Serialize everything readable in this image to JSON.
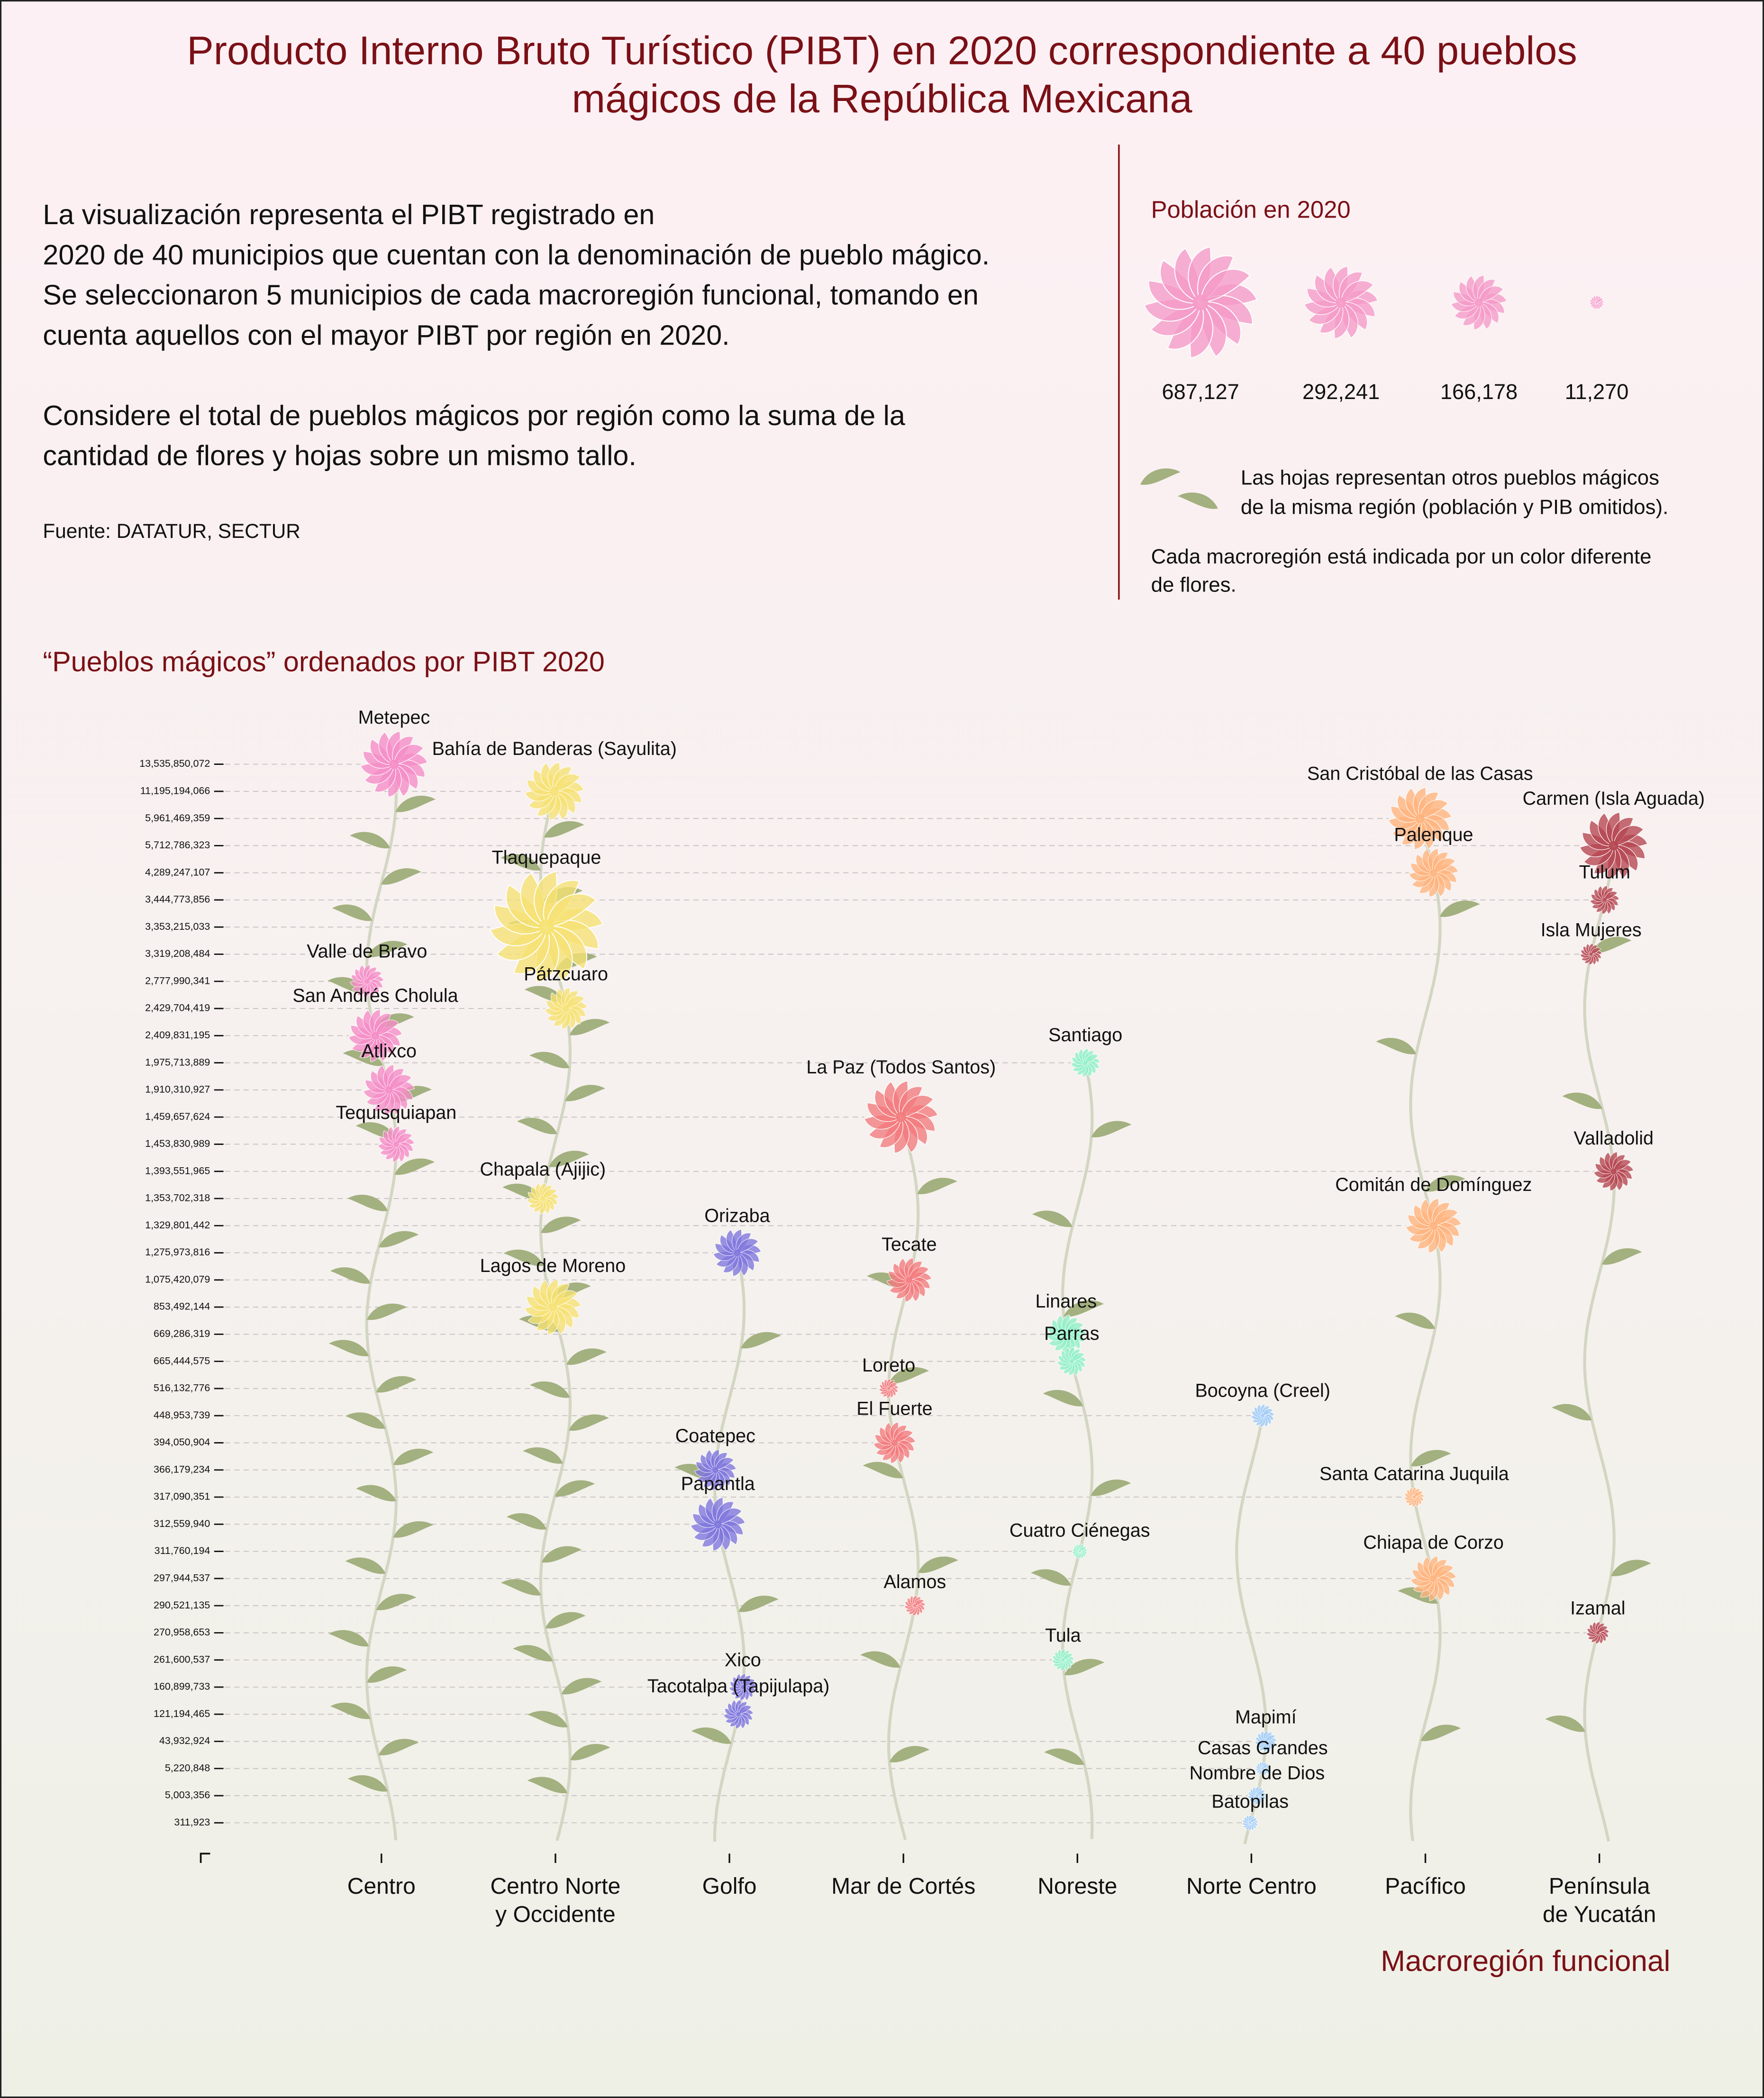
{
  "chart_data": {
    "type": "flower",
    "title": [
      "Producto Interno Bruto Turístico (PIBT) en 2020 correspondiente a 40 pueblos",
      "mágicos de la República Mexicana"
    ],
    "description": [
      [
        "La visualización representa el PIBT registrado en",
        "2020 de 40 municipios que cuentan con la denominación de pueblo mágico.",
        "Se seleccionaron 5 municipios de cada macroregión funcional, tomando en",
        "cuenta aquellos con el mayor PIBT por región en 2020."
      ],
      [
        "Considere el total de pueblos mágicos por región como la suma de la",
        "cantidad de flores y hojas sobre un mismo tallo."
      ]
    ],
    "source": "Fuente: DATATUR, SECTUR",
    "subtitle": "“Pueblos mágicos” ordenados por PIBT 2020",
    "xlabel": "Macroregión funcional",
    "legend": {
      "title": "Población en 2020",
      "color": "#f59ac8",
      "sizes": [
        {
          "value": 687127,
          "label": "687,127"
        },
        {
          "value": 292241,
          "label": "292,241"
        },
        {
          "value": 166178,
          "label": "166,178"
        },
        {
          "value": 11270,
          "label": "11,270"
        }
      ],
      "leaf_note": [
        "Las hojas representan otros pueblos mágicos",
        "de la misma región (población y PIB omitidos)."
      ],
      "color_note": [
        "Cada macroregión está indicada por un color diferente",
        "de flores."
      ]
    },
    "leaf_color": "#a3b07f",
    "y_scale": "rank",
    "grid": true,
    "yticks": [
      {
        "value": 13535850072,
        "label": "13,535,850,072"
      },
      {
        "value": 11195194066,
        "label": "11,195,194,066"
      },
      {
        "value": 5961469359,
        "label": "5,961,469,359"
      },
      {
        "value": 5712786323,
        "label": "5,712,786,323"
      },
      {
        "value": 4289247107,
        "label": "4,289,247,107"
      },
      {
        "value": 3444773856,
        "label": "3,444,773,856"
      },
      {
        "value": 3353215033,
        "label": "3,353,215,033"
      },
      {
        "value": 3319208484,
        "label": "3,319,208,484"
      },
      {
        "value": 2777990341,
        "label": "2,777,990,341"
      },
      {
        "value": 2429704419,
        "label": "2,429,704,419"
      },
      {
        "value": 2409831195,
        "label": "2,409,831,195"
      },
      {
        "value": 1975713889,
        "label": "1,975,713,889"
      },
      {
        "value": 1910310927,
        "label": "1,910,310,927"
      },
      {
        "value": 1459657624,
        "label": "1,459,657,624"
      },
      {
        "value": 1453830989,
        "label": "1,453,830,989"
      },
      {
        "value": 1393551965,
        "label": "1,393,551,965"
      },
      {
        "value": 1353702318,
        "label": "1,353,702,318"
      },
      {
        "value": 1329801442,
        "label": "1,329,801,442"
      },
      {
        "value": 1275973816,
        "label": "1,275,973,816"
      },
      {
        "value": 1075420079,
        "label": "1,075,420,079"
      },
      {
        "value": 853492144,
        "label": "853,492,144"
      },
      {
        "value": 669286319,
        "label": "669,286,319"
      },
      {
        "value": 665444575,
        "label": "665,444,575"
      },
      {
        "value": 516132776,
        "label": "516,132,776"
      },
      {
        "value": 448953739,
        "label": "448,953,739"
      },
      {
        "value": 394050904,
        "label": "394,050,904"
      },
      {
        "value": 366179234,
        "label": "366,179,234"
      },
      {
        "value": 317090351,
        "label": "317,090,351"
      },
      {
        "value": 312559940,
        "label": "312,559,940"
      },
      {
        "value": 311760194,
        "label": "311,760,194"
      },
      {
        "value": 297944537,
        "label": "297,944,537"
      },
      {
        "value": 290521135,
        "label": "290,521,135"
      },
      {
        "value": 270958653,
        "label": "270,958,653"
      },
      {
        "value": 261600537,
        "label": "261,600,537"
      },
      {
        "value": 160899733,
        "label": "160,899,733"
      },
      {
        "value": 121194465,
        "label": "121,194,465"
      },
      {
        "value": 43932924,
        "label": "43,932,924"
      },
      {
        "value": 5220848,
        "label": "5,220,848"
      },
      {
        "value": 5003356,
        "label": "5,003,356"
      },
      {
        "value": 311923,
        "label": "311,923"
      }
    ],
    "categories": [
      "Centro",
      "Centro Norte\ny Occidente",
      "Golfo",
      "Mar de Cortés",
      "Noreste",
      "Norte Centro",
      "Pacífico",
      "Península\nde Yucatán"
    ],
    "series": [
      {
        "color": "#f58cc6",
        "leaves": 28,
        "points": [
          {
            "name": "Metepec",
            "pibt": 13535850072,
            "population": 242000
          },
          {
            "name": "Valle de Bravo",
            "pibt": 2777990341,
            "population": 61600
          },
          {
            "name": "San Andrés Cholula",
            "pibt": 2409831195,
            "population": 154000
          },
          {
            "name": "Atlixco",
            "pibt": 1910310927,
            "population": 142000
          },
          {
            "name": "Tequisquiapan",
            "pibt": 1453830989,
            "population": 72000
          }
        ]
      },
      {
        "color": "#f6e272",
        "leaves": 30,
        "points": [
          {
            "name": "Bahía de Banderas (Sayulita)",
            "pibt": 11195194066,
            "population": 188000
          },
          {
            "name": "Tlaquepaque",
            "pibt": 3353215033,
            "population": 687127
          },
          {
            "name": "Pátzcuaro",
            "pibt": 2429704419,
            "population": 97000
          },
          {
            "name": "Chapala (Ajijic)",
            "pibt": 1353702318,
            "population": 55000
          },
          {
            "name": "Lagos de Moreno",
            "pibt": 853492144,
            "population": 172000
          }
        ]
      },
      {
        "color": "#7d74dc",
        "leaves": 4,
        "points": [
          {
            "name": "Orizaba",
            "pibt": 1275973816,
            "population": 123000
          },
          {
            "name": "Coatepec",
            "pibt": 366179234,
            "population": 94000
          },
          {
            "name": "Papantla",
            "pibt": 312559940,
            "population": 160000
          },
          {
            "name": "Xico",
            "pibt": 160899733,
            "population": 41000
          },
          {
            "name": "Tacotalpa (Tapijulapa)",
            "pibt": 121194465,
            "population": 48000
          }
        ]
      },
      {
        "color": "#f27a7c",
        "leaves": 7,
        "points": [
          {
            "name": "La Paz (Todos Santos)",
            "pibt": 1459657624,
            "population": 292241
          },
          {
            "name": "Tecate",
            "pibt": 1075420079,
            "population": 108000
          },
          {
            "name": "Loreto",
            "pibt": 516132776,
            "population": 21000
          },
          {
            "name": "El Fuerte",
            "pibt": 394050904,
            "population": 95000
          },
          {
            "name": "Alamos",
            "pibt": 290521135,
            "population": 24000
          }
        ]
      },
      {
        "color": "#8ff0c6",
        "leaves": 8,
        "points": [
          {
            "name": "Santiago",
            "pibt": 1975713889,
            "population": 46000
          },
          {
            "name": "Linares",
            "pibt": 669286319,
            "population": 84000
          },
          {
            "name": "Parras",
            "pibt": 665444575,
            "population": 46000
          },
          {
            "name": "Cuatro Ciénegas",
            "pibt": 311760194,
            "population": 13000
          },
          {
            "name": "Tula",
            "pibt": 261600537,
            "population": 27000
          }
        ]
      },
      {
        "color": "#9ecaf6",
        "leaves": 0,
        "points": [
          {
            "name": "Bocoyna (Creel)",
            "pibt": 448953739,
            "population": 30000
          },
          {
            "name": "Mapimí",
            "pibt": 43932924,
            "population": 26000
          },
          {
            "name": "Casas Grandes",
            "pibt": 5220848,
            "population": 11270
          },
          {
            "name": "Nombre de Dios",
            "pibt": 5003356,
            "population": 19000
          },
          {
            "name": "Batopilas",
            "pibt": 311923,
            "population": 14000
          }
        ]
      },
      {
        "color": "#ffb37c",
        "leaves": 7,
        "points": [
          {
            "name": "San Cristóbal de las Casas",
            "pibt": 5961469359,
            "population": 216000
          },
          {
            "name": "Palenque",
            "pibt": 4289247107,
            "population": 132000
          },
          {
            "name": "Comitán de Domínguez",
            "pibt": 1329801442,
            "population": 166178
          },
          {
            "name": "Santa Catarina Juquila",
            "pibt": 317090351,
            "population": 22000
          },
          {
            "name": "Chiapa de Corzo",
            "pibt": 297944537,
            "population": 112000
          }
        ]
      },
      {
        "color": "#b5454f",
        "leaves": 6,
        "points": [
          {
            "name": "Carmen (Isla Aguada)",
            "pibt": 5712786323,
            "population": 248000
          },
          {
            "name": "Tulum",
            "pibt": 3444773856,
            "population": 46000
          },
          {
            "name": "Isla Mujeres",
            "pibt": 3319208484,
            "population": 26000
          },
          {
            "name": "Valladolid",
            "pibt": 1393551965,
            "population": 85000
          },
          {
            "name": "Izamal",
            "pibt": 270958653,
            "population": 28000
          }
        ]
      }
    ]
  }
}
